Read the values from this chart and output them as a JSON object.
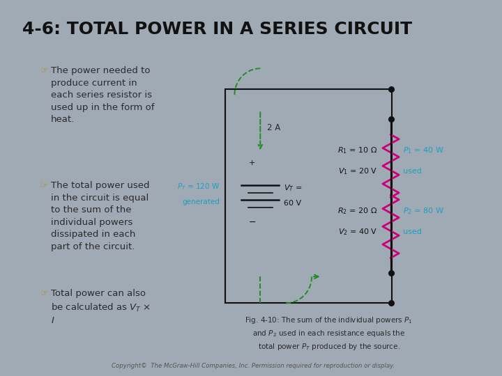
{
  "title": "4-6: TOTAL POWER IN A SERIES CIRCUIT",
  "title_fontsize": 18,
  "header_bar_color": "#c8a428",
  "outer_bg": "#a0aab4",
  "title_bg": "#f0f0f0",
  "content_bg": "#f0f0f2",
  "text_color": "#2a2a2a",
  "bullet_color": "#b89040",
  "cyan_color": "#1a9fc0",
  "green_color": "#228B22",
  "magenta_color": "#cc0077",
  "bullet1": "The power needed to\nproduce current in\neach series resistor is\nused up in the form of\nheat.",
  "bullet2": "The total power used\nin the circuit is equal\nto the sum of the\nindividual powers\ndissipated in each\npart of the circuit.",
  "bullet3": "Total power can also\nbe calculated as $V_T$ ×\n$I$",
  "copyright": "Copyright©  The McGraw-Hill Companies, Inc. Permission required for reproduction or display."
}
